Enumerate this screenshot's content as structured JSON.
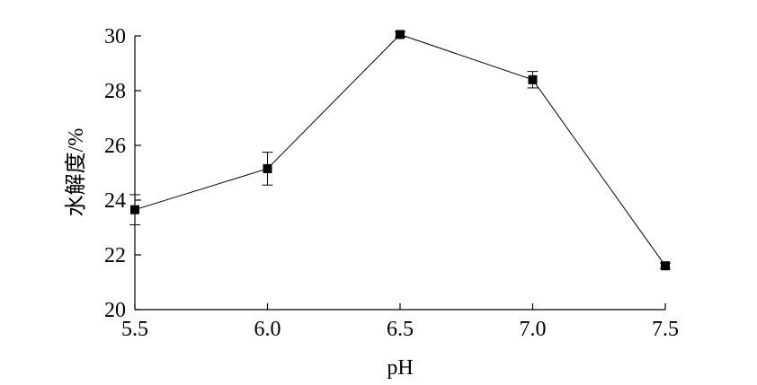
{
  "chart_data": {
    "type": "line",
    "title": "",
    "xlabel": "pH",
    "ylabel": "水解度/%",
    "x": [
      5.5,
      6.0,
      6.5,
      7.0,
      7.5
    ],
    "x_tick_labels": [
      "5.5",
      "6.0",
      "6.5",
      "7.0",
      "7.5"
    ],
    "y_tick_values": [
      20,
      22,
      24,
      26,
      28,
      30
    ],
    "y_tick_labels": [
      "20",
      "22",
      "24",
      "26",
      "28",
      "30"
    ],
    "xlim": [
      5.5,
      7.5
    ],
    "ylim": [
      20,
      30
    ],
    "grid": false,
    "series": [
      {
        "values": [
          23.65,
          25.15,
          30.05,
          28.4,
          21.6
        ],
        "error": [
          0.55,
          0.6,
          0.1,
          0.3,
          0.1
        ],
        "marker": "square",
        "color": "#000000"
      }
    ]
  }
}
